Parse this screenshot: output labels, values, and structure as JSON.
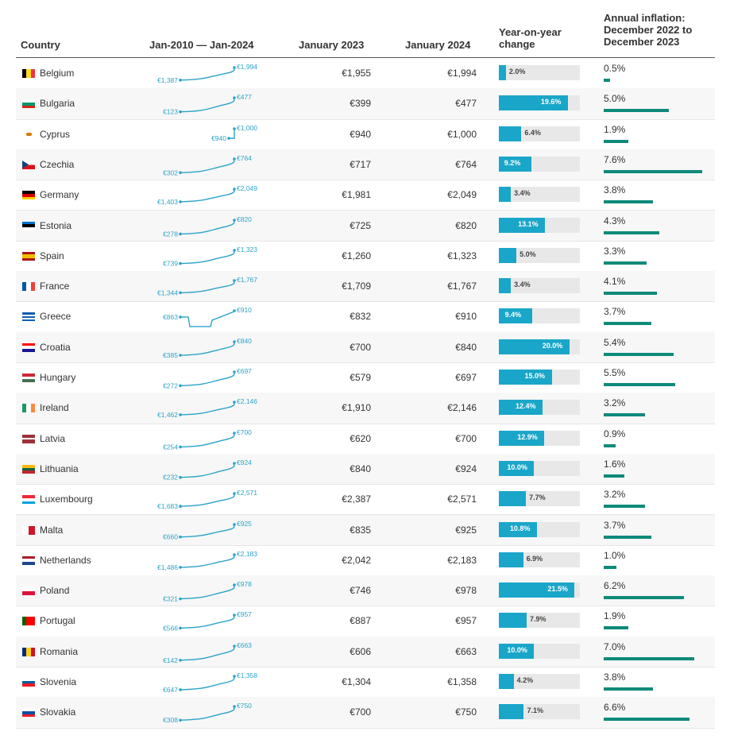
{
  "headers": {
    "country": "Country",
    "trend": "Jan-2010 — Jan-2024",
    "jan2023": "January 2023",
    "jan2024": "January 2024",
    "yoy_l1": "Year-on-year",
    "yoy_l2": "change",
    "inf_l1": "Annual inflation:",
    "inf_l2": "December 2022 to",
    "inf_l3": "December 2023"
  },
  "colors": {
    "yoy_bar": "#1aa6c9",
    "inflation_bar": "#0f8a7a",
    "sparkline": "#2ba3c8"
  },
  "chart_data": {
    "type": "table",
    "columns": [
      "Country",
      "Jan-2010 — Jan-2024",
      "January 2023",
      "January 2024",
      "Year-on-year change",
      "Annual inflation: December 2022 to December 2023"
    ],
    "rows": [
      {
        "country": "Belgium",
        "flag": [
          "#000000",
          "#FDDA24",
          "#EF3340"
        ],
        "flag_dir": "v",
        "start": "€1,387",
        "end": "€1,994",
        "jan2023": "€1,955",
        "jan2024": "€1,994",
        "yoy": 2.0,
        "yoy_label": "2.0%",
        "inflation": 0.5,
        "inflation_label": "0.5%"
      },
      {
        "country": "Bulgaria",
        "flag": [
          "#FFFFFF",
          "#00966E",
          "#D62612"
        ],
        "flag_dir": "h",
        "start": "€123",
        "end": "€477",
        "jan2023": "€399",
        "jan2024": "€477",
        "yoy": 19.6,
        "yoy_label": "19.6%",
        "inflation": 5.0,
        "inflation_label": "5.0%"
      },
      {
        "country": "Cyprus",
        "flag": [
          "#FFFFFF"
        ],
        "flag_dir": "cy",
        "start": "€940",
        "end": "€1,000",
        "jan2023": "€940",
        "jan2024": "€1,000",
        "yoy": 6.4,
        "yoy_label": "6.4%",
        "inflation": 1.9,
        "inflation_label": "1.9%"
      },
      {
        "country": "Czechia",
        "flag": [
          "#FFFFFF",
          "#D7141A"
        ],
        "flag_dir": "cz",
        "start": "€302",
        "end": "€764",
        "jan2023": "€717",
        "jan2024": "€764",
        "yoy": 9.2,
        "yoy_label": "9.2%",
        "inflation": 7.6,
        "inflation_label": "7.6%"
      },
      {
        "country": "Germany",
        "flag": [
          "#000000",
          "#DD0000",
          "#FFCE00"
        ],
        "flag_dir": "h",
        "start": "€1,403",
        "end": "€2,049",
        "jan2023": "€1,981",
        "jan2024": "€2,049",
        "yoy": 3.4,
        "yoy_label": "3.4%",
        "inflation": 3.8,
        "inflation_label": "3.8%"
      },
      {
        "country": "Estonia",
        "flag": [
          "#0072CE",
          "#000000",
          "#FFFFFF"
        ],
        "flag_dir": "h",
        "start": "€278",
        "end": "€820",
        "jan2023": "€725",
        "jan2024": "€820",
        "yoy": 13.1,
        "yoy_label": "13.1%",
        "inflation": 4.3,
        "inflation_label": "4.3%"
      },
      {
        "country": "Spain",
        "flag": [
          "#AA151B",
          "#F1BF00",
          "#F1BF00",
          "#AA151B"
        ],
        "flag_dir": "h",
        "start": "€739",
        "end": "€1,323",
        "jan2023": "€1,260",
        "jan2024": "€1,323",
        "yoy": 5.0,
        "yoy_label": "5.0%",
        "inflation": 3.3,
        "inflation_label": "3.3%"
      },
      {
        "country": "France",
        "flag": [
          "#0055A4",
          "#FFFFFF",
          "#EF4135"
        ],
        "flag_dir": "v",
        "start": "€1,344",
        "end": "€1,767",
        "jan2023": "€1,709",
        "jan2024": "€1,767",
        "yoy": 3.4,
        "yoy_label": "3.4%",
        "inflation": 4.1,
        "inflation_label": "4.1%"
      },
      {
        "country": "Greece",
        "flag": [
          "#0D5EAF",
          "#FFFFFF",
          "#0D5EAF",
          "#FFFFFF",
          "#0D5EAF"
        ],
        "flag_dir": "h",
        "start": "€863",
        "end": "€910",
        "jan2023": "€832",
        "jan2024": "€910",
        "yoy": 9.4,
        "yoy_label": "9.4%",
        "inflation": 3.7,
        "inflation_label": "3.7%"
      },
      {
        "country": "Croatia",
        "flag": [
          "#FF0000",
          "#FFFFFF",
          "#171796"
        ],
        "flag_dir": "h",
        "start": "€385",
        "end": "€840",
        "jan2023": "€700",
        "jan2024": "€840",
        "yoy": 20.0,
        "yoy_label": "20.0%",
        "inflation": 5.4,
        "inflation_label": "5.4%"
      },
      {
        "country": "Hungary",
        "flag": [
          "#CE2939",
          "#FFFFFF",
          "#477050"
        ],
        "flag_dir": "h",
        "start": "€272",
        "end": "€697",
        "jan2023": "€579",
        "jan2024": "€697",
        "yoy": 15.0,
        "yoy_label": "15.0%",
        "inflation": 5.5,
        "inflation_label": "5.5%"
      },
      {
        "country": "Ireland",
        "flag": [
          "#169B62",
          "#FFFFFF",
          "#FF883E"
        ],
        "flag_dir": "v",
        "start": "€1,462",
        "end": "€2,146",
        "jan2023": "€1,910",
        "jan2024": "€2,146",
        "yoy": 12.4,
        "yoy_label": "12.4%",
        "inflation": 3.2,
        "inflation_label": "3.2%"
      },
      {
        "country": "Latvia",
        "flag": [
          "#9E3039",
          "#9E3039",
          "#FFFFFF",
          "#9E3039",
          "#9E3039"
        ],
        "flag_dir": "h",
        "start": "€254",
        "end": "€700",
        "jan2023": "€620",
        "jan2024": "€700",
        "yoy": 12.9,
        "yoy_label": "12.9%",
        "inflation": 0.9,
        "inflation_label": "0.9%"
      },
      {
        "country": "Lithuania",
        "flag": [
          "#FDB913",
          "#006A44",
          "#C1272D"
        ],
        "flag_dir": "h",
        "start": "€232",
        "end": "€924",
        "jan2023": "€840",
        "jan2024": "€924",
        "yoy": 10.0,
        "yoy_label": "10.0%",
        "inflation": 1.6,
        "inflation_label": "1.6%"
      },
      {
        "country": "Luxembourg",
        "flag": [
          "#ED2939",
          "#FFFFFF",
          "#00A1DE"
        ],
        "flag_dir": "h",
        "start": "€1,683",
        "end": "€2,571",
        "jan2023": "€2,387",
        "jan2024": "€2,571",
        "yoy": 7.7,
        "yoy_label": "7.7%",
        "inflation": 3.2,
        "inflation_label": "3.2%"
      },
      {
        "country": "Malta",
        "flag": [
          "#FFFFFF",
          "#CF142B"
        ],
        "flag_dir": "v",
        "start": "€660",
        "end": "€925",
        "jan2023": "€835",
        "jan2024": "€925",
        "yoy": 10.8,
        "yoy_label": "10.8%",
        "inflation": 3.7,
        "inflation_label": "3.7%"
      },
      {
        "country": "Netherlands",
        "flag": [
          "#AE1C28",
          "#FFFFFF",
          "#21468B"
        ],
        "flag_dir": "h",
        "start": "€1,486",
        "end": "€2,183",
        "jan2023": "€2,042",
        "jan2024": "€2,183",
        "yoy": 6.9,
        "yoy_label": "6.9%",
        "inflation": 1.0,
        "inflation_label": "1.0%"
      },
      {
        "country": "Poland",
        "flag": [
          "#FFFFFF",
          "#DC143C"
        ],
        "flag_dir": "h",
        "start": "€321",
        "end": "€978",
        "jan2023": "€746",
        "jan2024": "€978",
        "yoy": 21.5,
        "yoy_label": "21.5%",
        "inflation": 6.2,
        "inflation_label": "6.2%"
      },
      {
        "country": "Portugal",
        "flag": [
          "#006600",
          "#FF0000",
          "#FF0000"
        ],
        "flag_dir": "v",
        "start": "€566",
        "end": "€957",
        "jan2023": "€887",
        "jan2024": "€957",
        "yoy": 7.9,
        "yoy_label": "7.9%",
        "inflation": 1.9,
        "inflation_label": "1.9%"
      },
      {
        "country": "Romania",
        "flag": [
          "#002B7F",
          "#FCD116",
          "#CE1126"
        ],
        "flag_dir": "v",
        "start": "€142",
        "end": "€663",
        "jan2023": "€606",
        "jan2024": "€663",
        "yoy": 10.0,
        "yoy_label": "10.0%",
        "inflation": 7.0,
        "inflation_label": "7.0%"
      },
      {
        "country": "Slovenia",
        "flag": [
          "#FFFFFF",
          "#005DA4",
          "#ED1C24"
        ],
        "flag_dir": "h",
        "start": "€647",
        "end": "€1,358",
        "jan2023": "€1,304",
        "jan2024": "€1,358",
        "yoy": 4.2,
        "yoy_label": "4.2%",
        "inflation": 3.8,
        "inflation_label": "3.8%"
      },
      {
        "country": "Slovakia",
        "flag": [
          "#FFFFFF",
          "#0B4EA2",
          "#EE1C25"
        ],
        "flag_dir": "h",
        "start": "€308",
        "end": "€750",
        "jan2023": "€700",
        "jan2024": "€750",
        "yoy": 7.1,
        "yoy_label": "7.1%",
        "inflation": 6.6,
        "inflation_label": "6.6%"
      }
    ]
  }
}
